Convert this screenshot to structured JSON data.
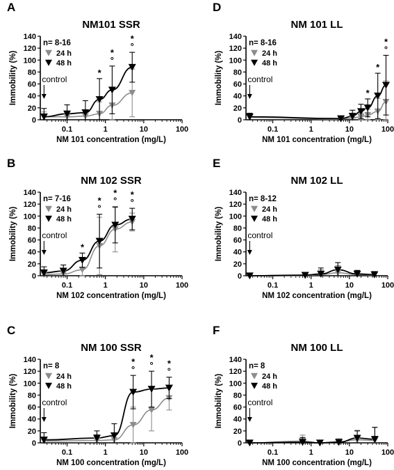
{
  "chart_data": [
    {
      "type": "scatter",
      "panel_letter": "A",
      "title": "NM101 SSR",
      "xlabel": "NM 101 concentration (mg/L)",
      "ylabel": "Immobility (%)",
      "x_scale": "log",
      "xlim": [
        0.02,
        100
      ],
      "ylim": [
        0,
        140
      ],
      "x_ticks": [
        "0.1",
        "1",
        "10",
        "100"
      ],
      "y_ticks": [
        "0",
        "20",
        "40",
        "60",
        "80",
        "100",
        "120",
        "140"
      ],
      "n_label": "n= 8-16",
      "control_label": "control",
      "control_x": 0.025,
      "grid": false,
      "legend_position": "top-left",
      "series": [
        {
          "name": "24 h",
          "color": "#8c8c8c",
          "x": [
            0.025,
            0.1,
            0.3,
            0.7,
            1.5,
            5
          ],
          "y": [
            5,
            5,
            6,
            10,
            24,
            45
          ],
          "err": [
            8,
            8,
            10,
            20,
            30,
            40
          ],
          "fit": true
        },
        {
          "name": "48 h",
          "color": "#000000",
          "x": [
            0.025,
            0.1,
            0.3,
            0.7,
            1.5,
            5
          ],
          "y": [
            5,
            10,
            12,
            34,
            50,
            88
          ],
          "err": [
            14,
            15,
            20,
            35,
            40,
            25
          ],
          "fit": true
        }
      ],
      "significance": [
        {
          "x": 0.7,
          "marks": "*"
        },
        {
          "x": 1.5,
          "marks": "*°"
        },
        {
          "x": 5,
          "marks": "*°"
        }
      ]
    },
    {
      "type": "scatter",
      "panel_letter": "D",
      "title": "NM 101 LL",
      "xlabel": "NM 101 concentration (mg/L)",
      "ylabel": "Immobility (%)",
      "x_scale": "log",
      "xlim": [
        0.02,
        100
      ],
      "ylim": [
        0,
        140
      ],
      "x_ticks": [
        "0.1",
        "1",
        "10",
        "100"
      ],
      "y_ticks": [
        "0",
        "20",
        "40",
        "60",
        "80",
        "100",
        "120",
        "140"
      ],
      "n_label": "n= 8-16",
      "control_label": "control",
      "control_x": 0.025,
      "grid": false,
      "legend_position": "top-left",
      "series": [
        {
          "name": "24 h",
          "color": "#8c8c8c",
          "x": [
            0.025,
            6,
            12,
            20,
            30,
            55,
            90
          ],
          "y": [
            4,
            1,
            3,
            5,
            8,
            14,
            30
          ],
          "err": [
            6,
            3,
            5,
            6,
            10,
            22,
            35
          ],
          "fit": true
        },
        {
          "name": "48 h",
          "color": "#000000",
          "x": [
            0.025,
            6,
            12,
            20,
            30,
            55,
            90
          ],
          "y": [
            5,
            2,
            6,
            14,
            20,
            40,
            58
          ],
          "err": [
            6,
            4,
            10,
            12,
            15,
            38,
            50
          ],
          "fit": true
        }
      ],
      "significance": [
        {
          "x": 30,
          "marks": "*"
        },
        {
          "x": 55,
          "marks": "*"
        },
        {
          "x": 90,
          "marks": "*°"
        }
      ]
    },
    {
      "type": "scatter",
      "panel_letter": "B",
      "title": "NM 102 SSR",
      "xlabel": "NM 102 concentration (mg/L)",
      "ylabel": "Immobility (%)",
      "x_scale": "log",
      "xlim": [
        0.02,
        100
      ],
      "ylim": [
        0,
        140
      ],
      "x_ticks": [
        "0.1",
        "1",
        "10",
        "100"
      ],
      "y_ticks": [
        "0",
        "20",
        "40",
        "60",
        "80",
        "100",
        "120",
        "140"
      ],
      "n_label": "n= 7-16",
      "control_label": "control",
      "control_x": 0.025,
      "grid": false,
      "legend_position": "top-left",
      "series": [
        {
          "name": "24 h",
          "color": "#8c8c8c",
          "x": [
            0.025,
            0.08,
            0.25,
            0.7,
            1.8,
            5
          ],
          "y": [
            2,
            3,
            10,
            50,
            78,
            90
          ],
          "err": [
            8,
            6,
            18,
            48,
            38,
            15
          ],
          "fit": true
        },
        {
          "name": "48 h",
          "color": "#000000",
          "x": [
            0.025,
            0.08,
            0.25,
            0.7,
            1.8,
            5
          ],
          "y": [
            5,
            8,
            26,
            58,
            85,
            95
          ],
          "err": [
            10,
            10,
            12,
            45,
            30,
            18
          ],
          "fit": true
        }
      ],
      "significance": [
        {
          "x": 0.25,
          "marks": "*"
        },
        {
          "x": 0.7,
          "marks": "*°"
        },
        {
          "x": 1.8,
          "marks": "*°"
        },
        {
          "x": 5,
          "marks": "*°"
        }
      ]
    },
    {
      "type": "scatter",
      "panel_letter": "E",
      "title": "NM 102 LL",
      "xlabel": "NM 102 concentration (mg/L)",
      "ylabel": "Immobility (%)",
      "x_scale": "log",
      "xlim": [
        0.02,
        100
      ],
      "ylim": [
        0,
        140
      ],
      "x_ticks": [
        "0.1",
        "1",
        "10",
        "100"
      ],
      "y_ticks": [
        "0",
        "20",
        "40",
        "60",
        "80",
        "100",
        "120",
        "140"
      ],
      "n_label": "n= 8-12",
      "control_label": "control",
      "control_x": 0.025,
      "grid": false,
      "legend_position": "top-left",
      "series": [
        {
          "name": "24 h",
          "color": "#8c8c8c",
          "x": [
            0.025,
            0.7,
            1.8,
            5,
            16,
            45
          ],
          "y": [
            0,
            0,
            2,
            5,
            2,
            1
          ],
          "err": [
            2,
            4,
            8,
            12,
            6,
            6
          ],
          "fit": true
        },
        {
          "name": "48 h",
          "color": "#000000",
          "x": [
            0.025,
            0.7,
            1.8,
            5,
            16,
            45
          ],
          "y": [
            0,
            1,
            3,
            10,
            3,
            2
          ],
          "err": [
            2,
            4,
            10,
            12,
            6,
            5
          ],
          "fit": true
        }
      ],
      "significance": []
    },
    {
      "type": "scatter",
      "panel_letter": "C",
      "title": "NM 100 SSR",
      "xlabel": "NM 100 concentration (mg/L)",
      "ylabel": "Immobility (%)",
      "x_scale": "log",
      "xlim": [
        0.02,
        100
      ],
      "ylim": [
        0,
        140
      ],
      "x_ticks": [
        "0.1",
        "1",
        "10",
        "100"
      ],
      "y_ticks": [
        "0",
        "20",
        "40",
        "60",
        "80",
        "100",
        "120",
        "140"
      ],
      "n_label": "n= 8",
      "control_label": "control",
      "control_x": 0.025,
      "grid": false,
      "legend_position": "top-left",
      "series": [
        {
          "name": "24 h",
          "color": "#8c8c8c",
          "x": [
            0.025,
            0.6,
            1.7,
            5.3,
            16,
            46
          ],
          "y": [
            3,
            4,
            5,
            30,
            55,
            75
          ],
          "err": [
            6,
            10,
            12,
            30,
            35,
            20
          ],
          "fit": true
        },
        {
          "name": "48 h",
          "color": "#000000",
          "x": [
            0.025,
            0.6,
            1.7,
            5.3,
            16,
            46
          ],
          "y": [
            5,
            8,
            12,
            85,
            90,
            92
          ],
          "err": [
            12,
            12,
            20,
            28,
            30,
            18
          ],
          "fit": true
        }
      ],
      "significance": [
        {
          "x": 5.3,
          "marks": "*°"
        },
        {
          "x": 16,
          "marks": "*°"
        },
        {
          "x": 46,
          "marks": "*°"
        }
      ]
    },
    {
      "type": "scatter",
      "panel_letter": "F",
      "title": "NM 100 LL",
      "xlabel": "NM 100 concentration (mg/L)",
      "ylabel": "Immobility (%)",
      "x_scale": "log",
      "xlim": [
        0.02,
        100
      ],
      "ylim": [
        0,
        140
      ],
      "x_ticks": [
        "0.1",
        "1",
        "10",
        "100"
      ],
      "y_ticks": [
        "0",
        "20",
        "40",
        "60",
        "80",
        "100",
        "120",
        "140"
      ],
      "n_label": "n= 8",
      "control_label": "control",
      "control_x": 0.025,
      "grid": false,
      "legend_position": "top-left",
      "series": [
        {
          "name": "24 h",
          "color": "#8c8c8c",
          "x": [
            0.025,
            0.6,
            1.7,
            5.3,
            16,
            46
          ],
          "y": [
            0,
            3,
            0,
            2,
            5,
            4
          ],
          "err": [
            2,
            10,
            3,
            5,
            16,
            22
          ],
          "fit": true
        },
        {
          "name": "48 h",
          "color": "#000000",
          "x": [
            0.025,
            0.6,
            1.7,
            5.3,
            16,
            46
          ],
          "y": [
            0,
            1,
            0,
            1,
            8,
            6
          ],
          "err": [
            2,
            8,
            3,
            4,
            12,
            20
          ],
          "fit": true
        }
      ],
      "significance": []
    }
  ]
}
